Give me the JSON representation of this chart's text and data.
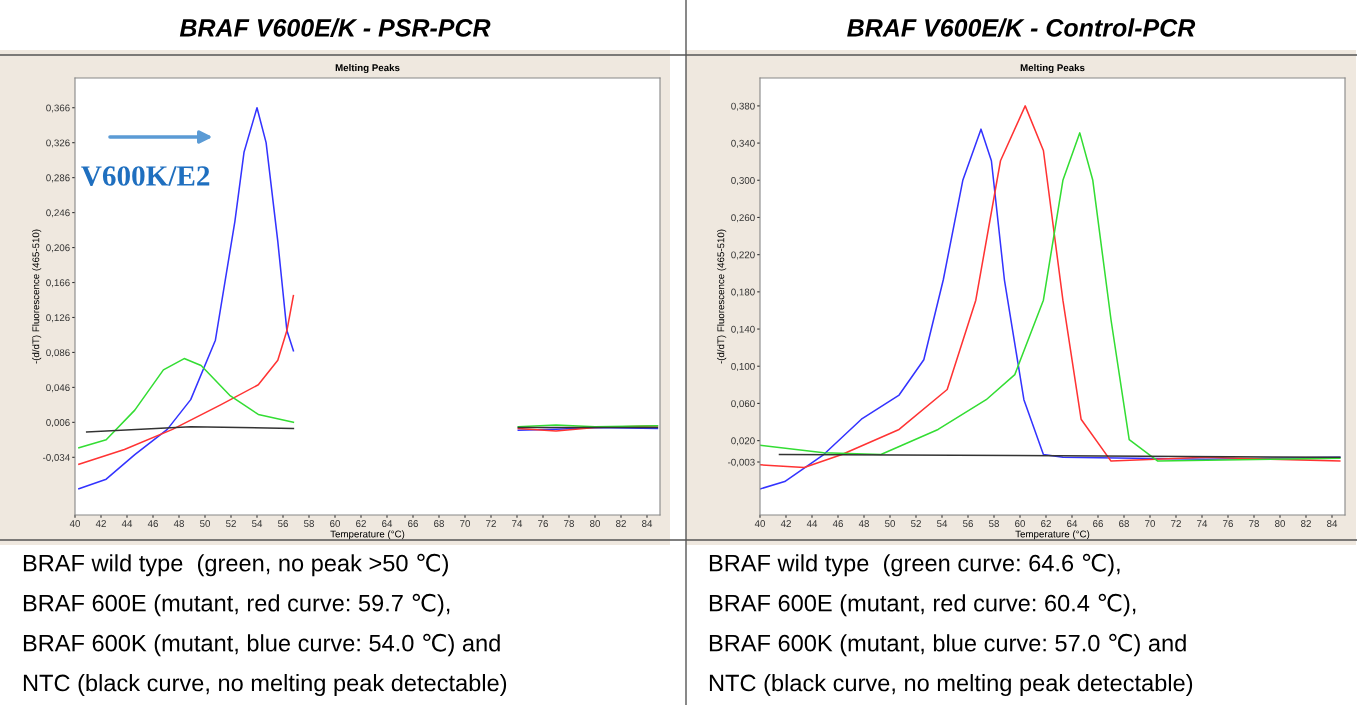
{
  "chart_data": [
    {
      "type": "line",
      "title": "BRAF V600E/K - PSR-PCR",
      "subtitle": "Melting Peaks",
      "xlabel": "Temperature (°C)",
      "ylabel": "-(d/dT) Fluorescence (465-510)",
      "annotations": [
        "BRAF wild type  (green, no peak >50 ℃)",
        "BRAF 600E (mutant, red curve: 59.7 ℃),",
        "BRAF 600K (mutant, blue curve: 54.0 ℃) and",
        "NTC (black curve, no melting peak detectable)",
        "V600K/E2"
      ],
      "xlim": [
        40,
        85
      ],
      "xticks": [
        40,
        42,
        44,
        46,
        48,
        50,
        52,
        54,
        56,
        58,
        60,
        62,
        64,
        66,
        68,
        70,
        72,
        74,
        76,
        78,
        80,
        82,
        84
      ],
      "ylim": [
        -0.1,
        0.4
      ],
      "yticks": [
        {
          "value": -0.034,
          "label": "-0,034"
        },
        {
          "value": 0.006,
          "label": "0,006"
        },
        {
          "value": 0.046,
          "label": "0,046"
        },
        {
          "value": 0.086,
          "label": "0,086"
        },
        {
          "value": 0.126,
          "label": "0,126"
        },
        {
          "value": 0.166,
          "label": "0,166"
        },
        {
          "value": 0.206,
          "label": "0,206"
        },
        {
          "value": 0.246,
          "label": "0,246"
        },
        {
          "value": 0.286,
          "label": "0,286"
        },
        {
          "value": 0.326,
          "label": "0,326"
        },
        {
          "value": 0.366,
          "label": "0,366"
        }
      ],
      "series": [
        {
          "color": "#3333ff",
          "x": [
            40.3,
            42.4,
            44.6,
            47.1,
            48.9,
            50.8,
            52.3,
            53.0,
            54.0,
            54.7,
            55.6,
            56.3,
            56.8,
            null,
            74.1,
            77,
            80,
            84.8
          ],
          "values": [
            -0.07,
            -0.059,
            -0.031,
            -0.002,
            0.032,
            0.1,
            0.236,
            0.315,
            0.366,
            0.326,
            0.213,
            0.111,
            0.088,
            null,
            -0.003,
            -0.002,
            0.0,
            -0.001
          ]
        },
        {
          "color": "#ff3333",
          "x": [
            40.3,
            43.8,
            47.5,
            51.2,
            54.1,
            55.6,
            56.3,
            56.8,
            null,
            74.1,
            77,
            80,
            84.8
          ],
          "values": [
            -0.042,
            -0.025,
            -0.002,
            0.026,
            0.049,
            0.077,
            0.111,
            0.151,
            null,
            -0.001,
            -0.004,
            0.0,
            0.002
          ]
        },
        {
          "color": "#33dd33",
          "x": [
            40.3,
            42.4,
            44.6,
            46.8,
            48.4,
            49.7,
            51.9,
            54.1,
            56.8,
            null,
            74.1,
            77,
            80,
            84.8
          ],
          "values": [
            -0.023,
            -0.014,
            0.02,
            0.066,
            0.079,
            0.071,
            0.037,
            0.015,
            0.006,
            null,
            0.001,
            0.003,
            0.001,
            0.002
          ]
        },
        {
          "color": "#333333",
          "x": [
            40.9,
            48.9,
            56.8,
            null,
            74.1,
            84.8
          ],
          "values": [
            -0.005,
            0.001,
            -0.001,
            null,
            0.0,
            0.0
          ]
        }
      ]
    },
    {
      "type": "line",
      "title": "BRAF V600E/K - Control-PCR",
      "subtitle": "Melting Peaks",
      "xlabel": "Temperature (°C)",
      "ylabel": "-(d/dT) Fluorescence (465-510)",
      "annotations": [
        "BRAF wild type  (green curve: 64.6 ℃),",
        "BRAF 600E (mutant, red curve: 60.4 ℃),",
        "BRAF 600K (mutant, blue curve: 57.0 ℃) and",
        "NTC (black curve, no melting peak detectable)"
      ],
      "xlim": [
        40,
        85
      ],
      "xticks": [
        40,
        42,
        44,
        46,
        48,
        50,
        52,
        54,
        56,
        58,
        60,
        62,
        64,
        66,
        68,
        70,
        72,
        74,
        76,
        78,
        80,
        82,
        84
      ],
      "ylim": [
        -0.06,
        0.41
      ],
      "yticks": [
        {
          "value": -0.003,
          "label": "-0,003"
        },
        {
          "value": 0.02,
          "label": "0,020"
        },
        {
          "value": 0.06,
          "label": "0,060"
        },
        {
          "value": 0.1,
          "label": "0,100"
        },
        {
          "value": 0.14,
          "label": "0,140"
        },
        {
          "value": 0.18,
          "label": "0,180"
        },
        {
          "value": 0.22,
          "label": "0,220"
        },
        {
          "value": 0.26,
          "label": "0,260"
        },
        {
          "value": 0.3,
          "label": "0,300"
        },
        {
          "value": 0.34,
          "label": "0,340"
        },
        {
          "value": 0.38,
          "label": "0,380"
        }
      ],
      "series": [
        {
          "color": "#3333ff",
          "x": [
            40.0,
            41.9,
            44.9,
            47.8,
            50.7,
            52.6,
            54.1,
            55.6,
            57.0,
            57.8,
            58.8,
            60.3,
            61.8,
            63.3,
            74.3,
            84.6
          ],
          "values": [
            -0.032,
            -0.024,
            0.005,
            0.043,
            0.069,
            0.107,
            0.193,
            0.3,
            0.355,
            0.321,
            0.193,
            0.064,
            0.005,
            0.002,
            0.0,
            0.002
          ]
        },
        {
          "color": "#ff3333",
          "x": [
            40.0,
            43.4,
            46.3,
            50.7,
            54.4,
            56.6,
            58.5,
            60.4,
            61.8,
            63.3,
            64.7,
            67.0,
            74.3,
            84.6
          ],
          "values": [
            -0.006,
            -0.009,
            0.005,
            0.032,
            0.075,
            0.171,
            0.321,
            0.38,
            0.332,
            0.171,
            0.043,
            -0.002,
            0.002,
            -0.002
          ]
        },
        {
          "color": "#33dd33",
          "x": [
            40.0,
            44.9,
            49.3,
            53.7,
            57.4,
            59.6,
            61.8,
            63.3,
            64.6,
            65.6,
            67.0,
            68.4,
            70.6,
            84.6
          ],
          "values": [
            0.015,
            0.007,
            0.005,
            0.032,
            0.064,
            0.091,
            0.171,
            0.3,
            0.351,
            0.3,
            0.15,
            0.021,
            -0.002,
            0.001
          ]
        },
        {
          "color": "#333333",
          "x": [
            41.5,
            59.6,
            84.6
          ],
          "values": [
            0.005,
            0.004,
            0.002
          ]
        }
      ]
    }
  ]
}
